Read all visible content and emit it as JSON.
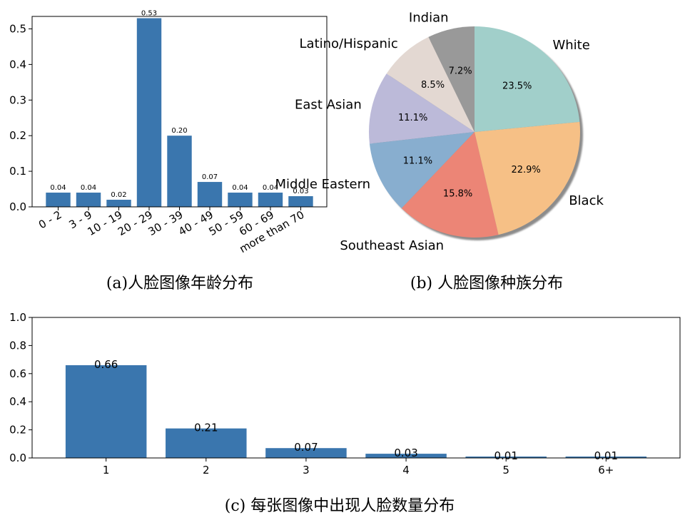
{
  "captions": {
    "a": "(a)人脸图像年龄分布",
    "b": "(b) 人脸图像种族分布",
    "c": "(c) 每张图像中出现人脸数量分布"
  },
  "chart_data": [
    {
      "id": "a",
      "type": "bar",
      "categories": [
        "0 - 2",
        "3 - 9",
        "10 - 19",
        "20 - 29",
        "30 - 39",
        "40 - 49",
        "50 - 59",
        "60 - 69",
        "more than 70"
      ],
      "values": [
        0.04,
        0.04,
        0.02,
        0.53,
        0.2,
        0.07,
        0.04,
        0.04,
        0.03
      ],
      "value_labels": [
        "0.04",
        "0.04",
        "0.02",
        "0.53",
        "0.20",
        "0.07",
        "0.04",
        "0.04",
        "0.03"
      ],
      "yticks": [
        "0.0",
        "0.1",
        "0.2",
        "0.3",
        "0.4",
        "0.5"
      ],
      "ylim": [
        0,
        0.535
      ],
      "color": "#3a76ae",
      "grid": false
    },
    {
      "id": "b",
      "type": "pie",
      "start_angle_deg": 90,
      "direction": "counterclockwise",
      "slices": [
        {
          "label": "Indian",
          "value": 7.2,
          "pct_label": "7.2%",
          "color": "#999999"
        },
        {
          "label": "Latino/Hispanic",
          "value": 8.5,
          "pct_label": "8.5%",
          "color": "#e3d8d2"
        },
        {
          "label": "East Asian",
          "value": 11.1,
          "pct_label": "11.1%",
          "color": "#bcbad9"
        },
        {
          "label": "Middle Eastern",
          "value": 11.1,
          "pct_label": "11.1%",
          "color": "#88aecf"
        },
        {
          "label": "Southeast Asian",
          "value": 15.8,
          "pct_label": "15.8%",
          "color": "#ec8576"
        },
        {
          "label": "Black",
          "value": 22.9,
          "pct_label": "22.9%",
          "color": "#f6c086"
        },
        {
          "label": "White",
          "value": 23.5,
          "pct_label": "23.5%",
          "color": "#a1cfca"
        }
      ],
      "shadow": true
    },
    {
      "id": "c",
      "type": "bar",
      "categories": [
        "1",
        "2",
        "3",
        "4",
        "5",
        "6+"
      ],
      "values": [
        0.66,
        0.21,
        0.07,
        0.03,
        0.01,
        0.01
      ],
      "value_labels": [
        "0.66",
        "0.21",
        "0.07",
        "0.03",
        "0.01",
        "0.01"
      ],
      "yticks": [
        "0.0",
        "0.2",
        "0.4",
        "0.6",
        "0.8",
        "1.0"
      ],
      "ylim": [
        0,
        1.0
      ],
      "color": "#3a76ae",
      "grid": false
    }
  ]
}
